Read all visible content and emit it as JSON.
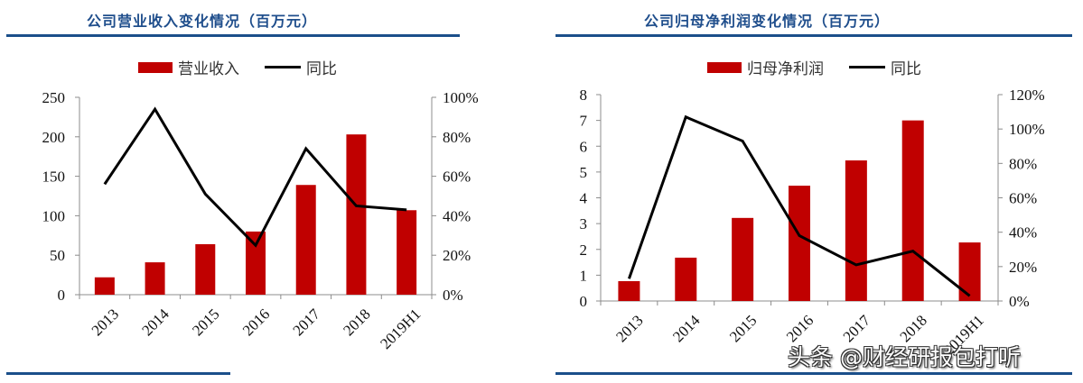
{
  "panels": [
    {
      "title": "公司营业收入变化情况（百万元）",
      "legend": {
        "bar_label": "营业收入",
        "line_label": "同比"
      }
    },
    {
      "title": "公司归母净利润变化情况（百万元）",
      "legend": {
        "bar_label": "归母净利润",
        "line_label": "同比"
      }
    }
  ],
  "watermark": "头条 @财经研报包打听",
  "colors": {
    "bar": "#c00000",
    "line": "#000000",
    "rule": "#1b4f8a",
    "title": "#1f4e8c"
  },
  "chart_data": [
    {
      "type": "bar+line",
      "title": "公司营业收入变化情况（百万元）",
      "categories": [
        "2013",
        "2014",
        "2015",
        "2016",
        "2017",
        "2018",
        "2019H1"
      ],
      "series": [
        {
          "name": "营业收入",
          "type": "bar",
          "axis": "left",
          "values": [
            22,
            41,
            64,
            80,
            139,
            203,
            107
          ]
        },
        {
          "name": "同比",
          "type": "line",
          "axis": "right",
          "values": [
            0.56,
            0.94,
            0.51,
            0.25,
            0.74,
            0.45,
            0.43
          ]
        }
      ],
      "left_axis": {
        "min": 0,
        "max": 250,
        "ticks": [
          "0",
          "50",
          "100",
          "150",
          "200",
          "250"
        ]
      },
      "right_axis": {
        "min": 0,
        "max": 1.0,
        "ticks": [
          "0%",
          "20%",
          "40%",
          "60%",
          "80%",
          "100%"
        ]
      },
      "legend_position": "top",
      "grid": false
    },
    {
      "type": "bar+line",
      "title": "公司归母净利润变化情况（百万元）",
      "categories": [
        "2013",
        "2014",
        "2015",
        "2016",
        "2017",
        "2018",
        "2019H1"
      ],
      "series": [
        {
          "name": "归母净利润",
          "type": "bar",
          "axis": "left",
          "values": [
            0.77,
            1.68,
            3.22,
            4.47,
            5.45,
            7.0,
            2.27
          ]
        },
        {
          "name": "同比",
          "type": "line",
          "axis": "right",
          "values": [
            0.13,
            1.07,
            0.93,
            0.38,
            0.21,
            0.29,
            0.03
          ]
        }
      ],
      "left_axis": {
        "min": 0,
        "max": 8,
        "ticks": [
          "0",
          "1",
          "2",
          "3",
          "4",
          "5",
          "6",
          "7",
          "8"
        ]
      },
      "right_axis": {
        "min": 0,
        "max": 1.2,
        "ticks": [
          "0%",
          "20%",
          "40%",
          "60%",
          "80%",
          "100%",
          "120%"
        ]
      },
      "legend_position": "top",
      "grid": false
    }
  ]
}
